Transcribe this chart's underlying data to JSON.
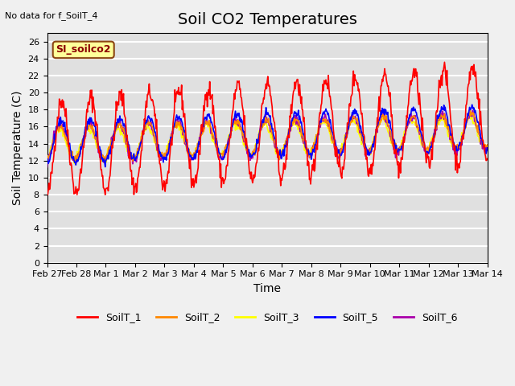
{
  "title": "Soil CO2 Temperatures",
  "xlabel": "Time",
  "ylabel": "Soil Temperature (C)",
  "annotation": "No data for f_SoilT_4",
  "box_label": "SI_soilco2",
  "ylim": [
    0,
    27
  ],
  "yticks": [
    0,
    2,
    4,
    6,
    8,
    10,
    12,
    14,
    16,
    18,
    20,
    22,
    24,
    26
  ],
  "xtick_labels": [
    "Feb 27",
    "Feb 28",
    "Mar 1",
    "Mar 2",
    "Mar 3",
    "Mar 4",
    "Mar 5",
    "Mar 6",
    "Mar 7",
    "Mar 8",
    "Mar 9",
    "Mar 10",
    "Mar 11",
    "Mar 12",
    "Mar 13",
    "Mar 14"
  ],
  "series_colors": {
    "SoilT_1": "#ff0000",
    "SoilT_2": "#ff8800",
    "SoilT_3": "#ffff00",
    "SoilT_5": "#0000ff",
    "SoilT_6": "#aa00aa"
  },
  "legend_entries": [
    "SoilT_1",
    "SoilT_2",
    "SoilT_3",
    "SoilT_5",
    "SoilT_6"
  ],
  "fig_bg_color": "#f0f0f0",
  "plot_bg_color": "#e0e0e0",
  "grid_color": "#ffffff",
  "title_fontsize": 14,
  "label_fontsize": 10,
  "tick_fontsize": 8
}
